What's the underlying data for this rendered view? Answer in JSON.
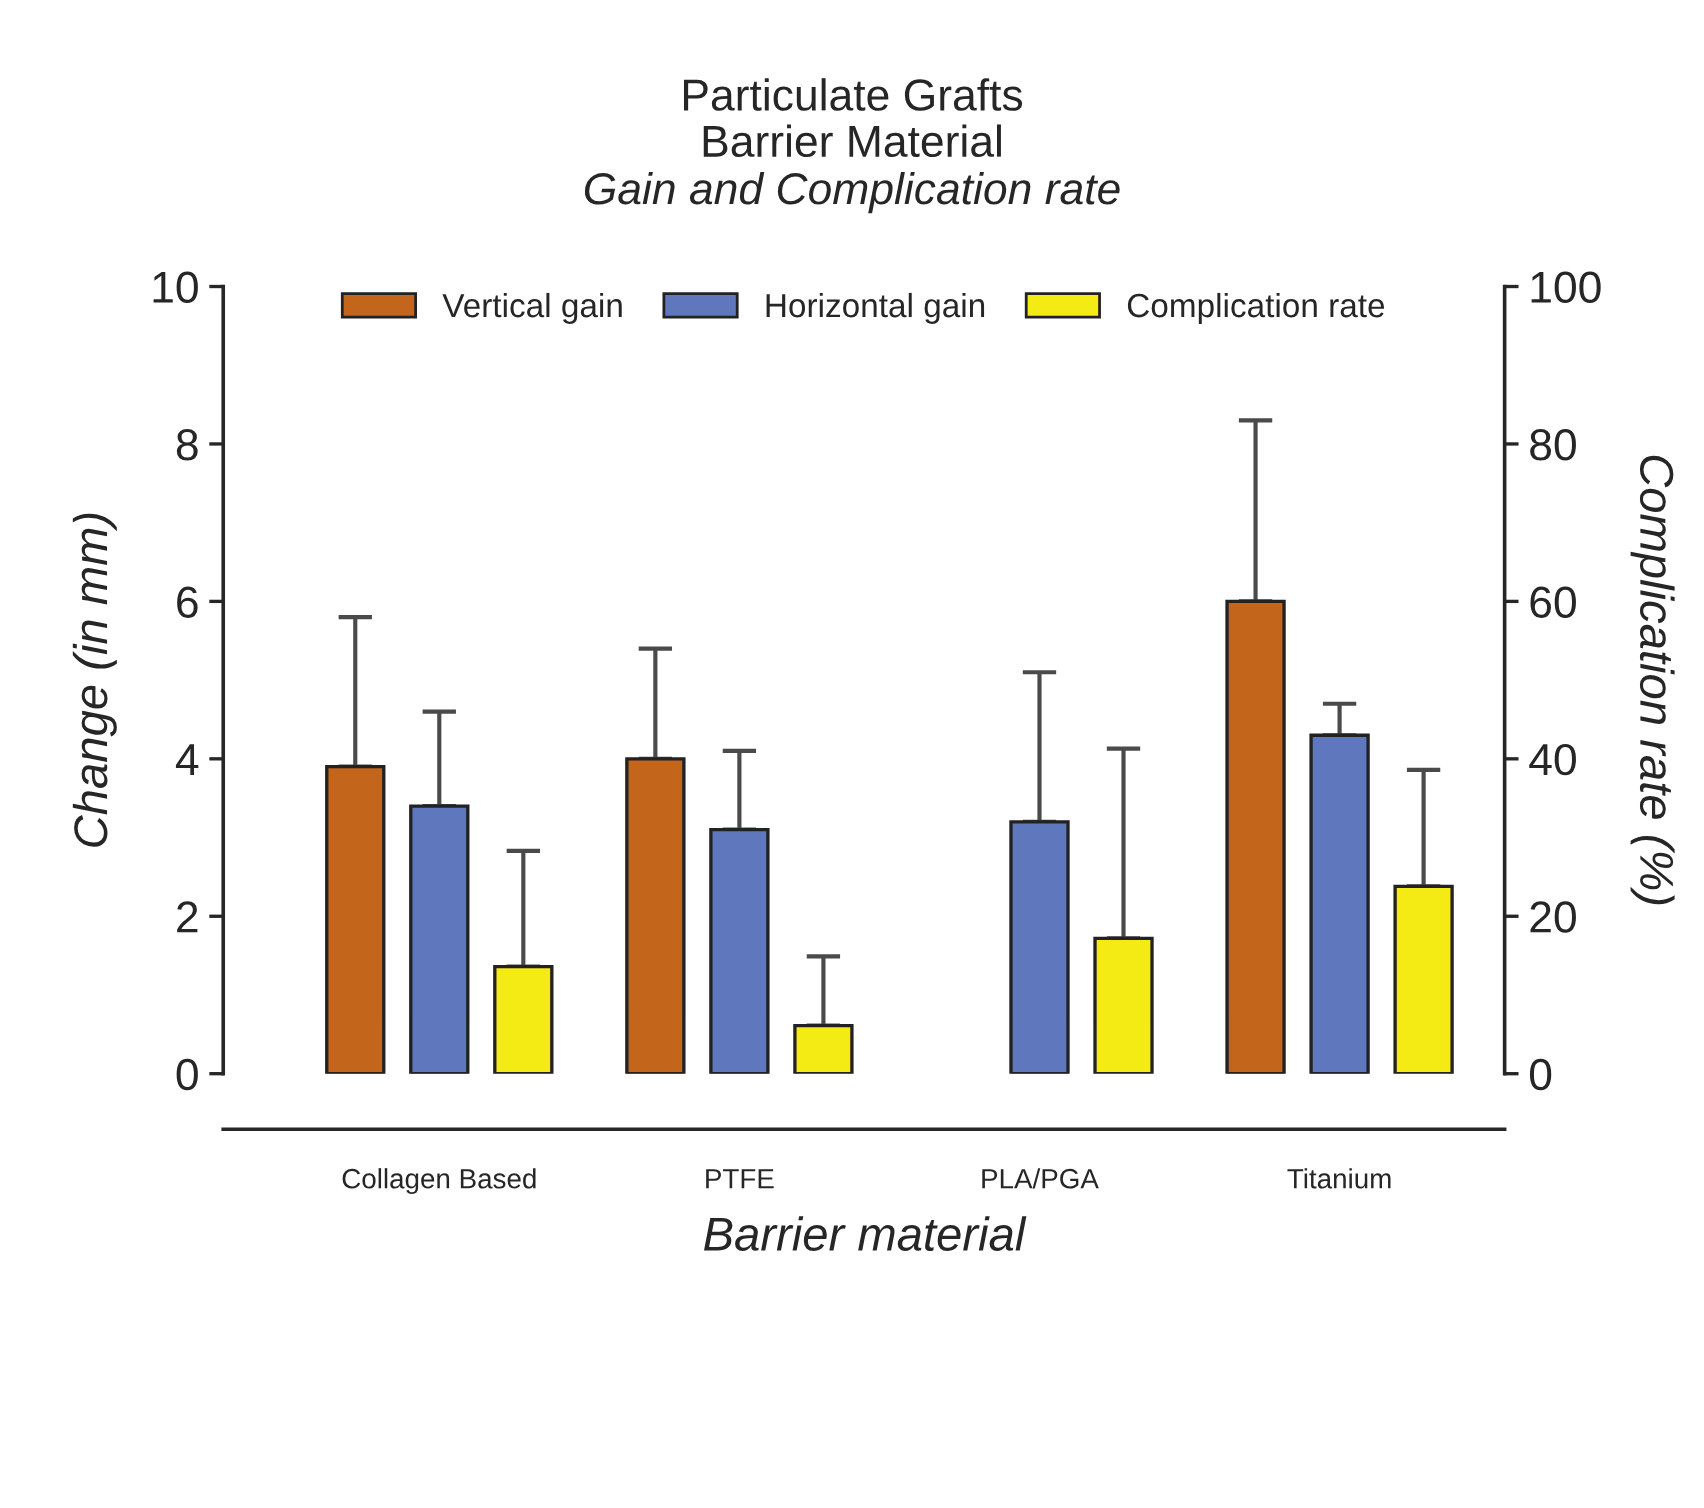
{
  "chart_data": {
    "type": "bar",
    "title": "Particulate Grafts\nBarrier Material",
    "subtitle": "Gain and Complication rate",
    "xlabel": "Barrier material",
    "ylabel": "Change (in mm)",
    "y2label": "Complication rate (%)",
    "categories": [
      "Collagen Based",
      "PTFE",
      "PLA/PGA",
      "Titanium"
    ],
    "series": [
      {
        "name": "Vertical gain",
        "color": "#c4651c",
        "values": [
          3.9,
          4.0,
          null,
          6.0
        ],
        "errors": [
          [
            3.9,
            5.8
          ],
          [
            4.0,
            5.4
          ],
          null,
          [
            6.0,
            8.3
          ]
        ]
      },
      {
        "name": "Horizontal gain",
        "color": "#5f78bd",
        "values": [
          3.4,
          3.1,
          3.2,
          4.3
        ],
        "errors": [
          [
            3.4,
            4.6
          ],
          [
            3.1,
            4.1
          ],
          [
            3.2,
            5.1
          ],
          [
            4.3,
            4.7
          ]
        ]
      },
      {
        "name": "Complication rate",
        "color": "#f5eb14",
        "axis": "y2",
        "values": [
          13.6,
          6.1,
          17.2,
          23.8
        ],
        "errors": [
          [
            13.6,
            28.3
          ],
          [
            6.1,
            14.9
          ],
          [
            17.2,
            41.3
          ],
          [
            23.8,
            38.6
          ]
        ]
      }
    ],
    "ylim": [
      0,
      10
    ],
    "yticks": [
      0,
      2,
      4,
      6,
      8,
      10
    ],
    "y2lim": [
      0,
      100
    ],
    "y2ticks": [
      0,
      20,
      40,
      60,
      80,
      100
    ],
    "grid": false,
    "legend": "top"
  }
}
